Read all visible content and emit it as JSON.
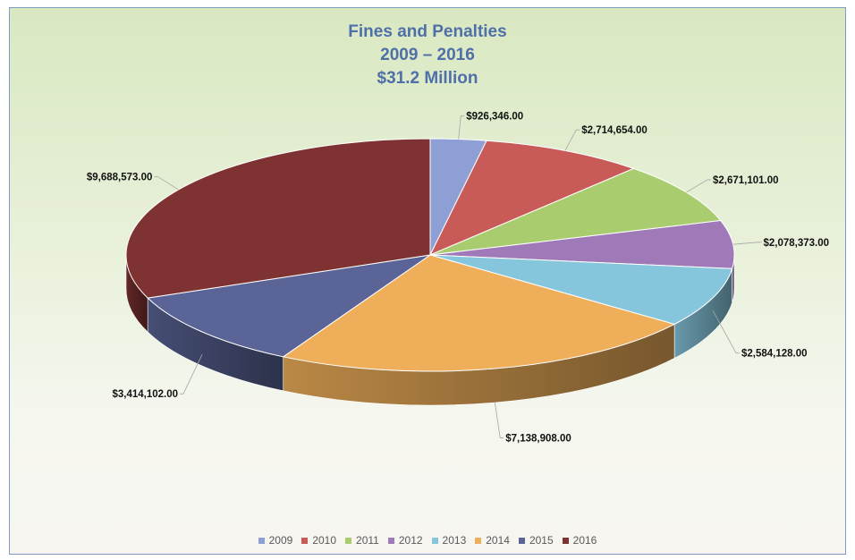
{
  "chart_data": {
    "type": "pie",
    "title_lines": [
      "Fines and Penalties",
      "2009 – 2016",
      "$31.2 Million"
    ],
    "categories": [
      "2009",
      "2010",
      "2011",
      "2012",
      "2013",
      "2014",
      "2015",
      "2016"
    ],
    "values": [
      926346.0,
      2714654.0,
      2671101.0,
      2078373.0,
      2584128.0,
      7138908.0,
      3414102.0,
      9688573.0
    ],
    "labels": [
      "$926,346.00",
      "$2,714,654.00",
      "$2,671,101.00",
      "$2,078,373.00",
      "$2,584,128.00",
      "$7,138,908.00",
      "$3,414,102.00",
      "$9,688,573.00"
    ],
    "colors": [
      "#8e9fd6",
      "#c85a58",
      "#a9cd6e",
      "#a07ab8",
      "#86c6dc",
      "#eeae5a",
      "#5a6496",
      "#7f3232"
    ],
    "legend_position": "bottom",
    "style": "3d-pie"
  }
}
